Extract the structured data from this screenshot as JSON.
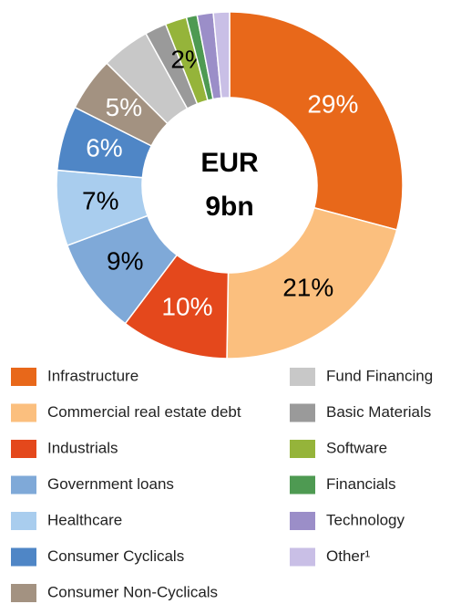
{
  "chart_data": {
    "type": "donut",
    "center_label": [
      "EUR",
      "9bn"
    ],
    "categories": [
      "Infrastructure",
      "Commercial real estate debt",
      "Industrials",
      "Government loans",
      "Healthcare",
      "Consumer Cyclicals",
      "Consumer Non-Cyclicals",
      "Fund Financing",
      "Basic Materials",
      "Software",
      "Financials",
      "Technology",
      "Other¹"
    ],
    "values": [
      29,
      21,
      10,
      9,
      7,
      6,
      5,
      4.5,
      2,
      2,
      1,
      1.5,
      1.5
    ],
    "value_labels": [
      "29%",
      "21%",
      "10%",
      "9%",
      "7%",
      "6%",
      "5%",
      null,
      null,
      "2%",
      null,
      null,
      null
    ],
    "colors": [
      "#e8681a",
      "#fbbf7e",
      "#e4481c",
      "#7fa9d8",
      "#a9cdee",
      "#4f86c6",
      "#a39281",
      "#c8c8c8",
      "#9a9a9a",
      "#95b43a",
      "#4e9a52",
      "#9b8ec8",
      "#c9bfe6"
    ],
    "label_colors": [
      "#ffffff",
      "#000000",
      "#ffffff",
      "#000000",
      "#000000",
      "#ffffff",
      "#ffffff",
      null,
      null,
      "#000000",
      null,
      null,
      null
    ],
    "legend": "bottom"
  }
}
